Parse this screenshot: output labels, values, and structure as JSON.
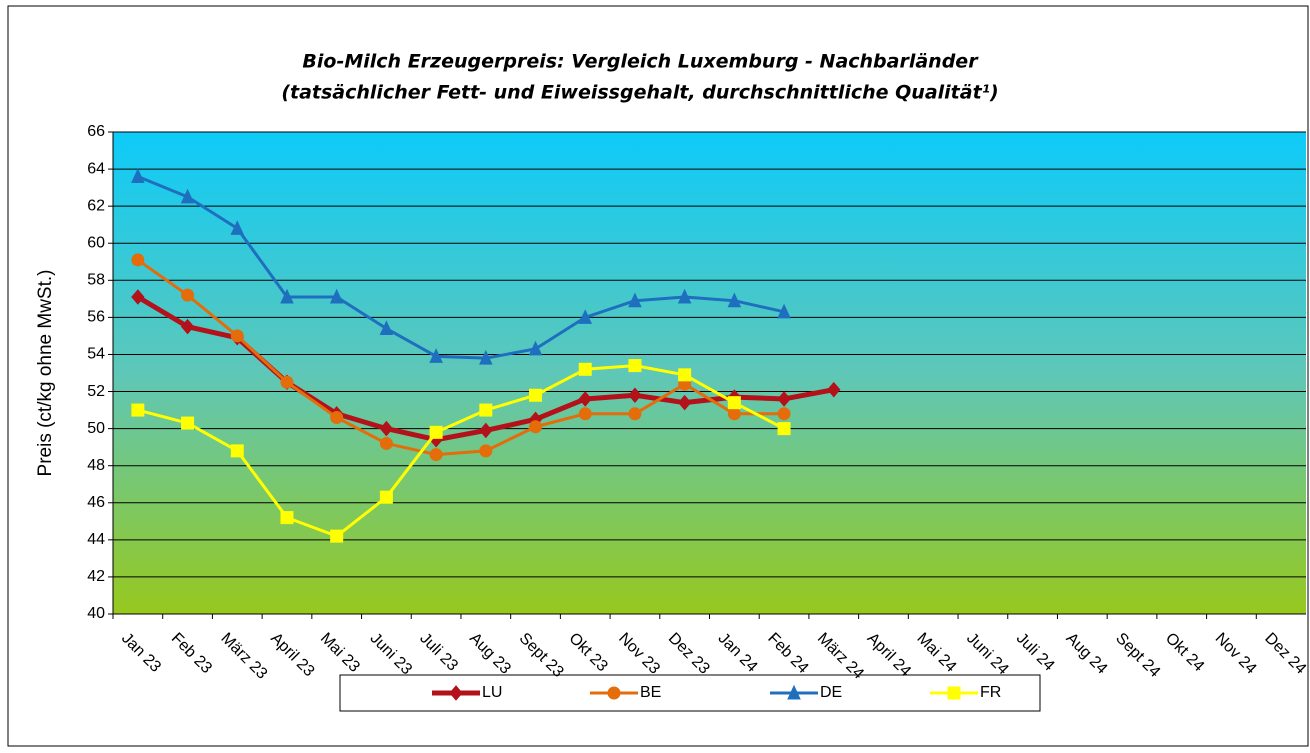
{
  "chart_data": {
    "type": "line",
    "title": [
      "Bio-Milch Erzeugerpreis: Vergleich Luxemburg - Nachbarländer",
      "(tatsächlicher Fett- und Eiweissgehalt, durchschnittliche Qualität¹)"
    ],
    "y_label": "Preis (ct/kg ohne MwSt.)",
    "categories": [
      "Jan 23",
      "Feb 23",
      "März 23",
      "April 23",
      "Mai 23",
      "Juni 23",
      "Juli 23",
      "Aug 23",
      "Sept 23",
      "Okt 23",
      "Nov 23",
      "Dez 23",
      "Jan 24",
      "Feb 24",
      "März 24",
      "April 24",
      "Mai 24",
      "Juni 24",
      "Juli 24",
      "Aug 24",
      "Sept 24",
      "Okt 24",
      "Nov 24",
      "Dez 24"
    ],
    "series": [
      {
        "name": "LU",
        "color": "#b3121b",
        "marker": "diamond",
        "values": [
          57.1,
          55.5,
          54.9,
          52.5,
          50.8,
          50.0,
          49.4,
          49.9,
          50.5,
          51.6,
          51.8,
          51.4,
          51.7,
          51.6,
          52.1,
          null,
          null,
          null,
          null,
          null,
          null,
          null,
          null,
          null
        ]
      },
      {
        "name": "BE",
        "color": "#e46c0a",
        "marker": "circle",
        "values": [
          59.1,
          57.2,
          55.0,
          52.5,
          50.6,
          49.2,
          48.6,
          48.8,
          50.1,
          50.8,
          50.8,
          52.4,
          50.8,
          50.8,
          null,
          null,
          null,
          null,
          null,
          null,
          null,
          null,
          null,
          null
        ]
      },
      {
        "name": "DE",
        "color": "#1f6fbf",
        "marker": "triangle",
        "values": [
          63.6,
          62.5,
          60.8,
          57.1,
          57.1,
          55.4,
          53.9,
          53.8,
          54.3,
          56.0,
          56.9,
          57.1,
          56.9,
          56.3,
          null,
          null,
          null,
          null,
          null,
          null,
          null,
          null,
          null,
          null
        ]
      },
      {
        "name": "FR",
        "color": "#ffff00",
        "marker": "square",
        "values": [
          51.0,
          50.3,
          48.8,
          45.2,
          44.2,
          46.3,
          49.8,
          51.0,
          51.8,
          53.2,
          53.4,
          52.9,
          51.4,
          50.0,
          null,
          null,
          null,
          null,
          null,
          null,
          null,
          null,
          null,
          null
        ]
      }
    ],
    "ylim": [
      40,
      66
    ],
    "yticks": [
      40,
      42,
      44,
      46,
      48,
      50,
      52,
      54,
      56,
      58,
      60,
      62,
      64,
      66
    ],
    "grid": true,
    "legend": "bottom"
  }
}
